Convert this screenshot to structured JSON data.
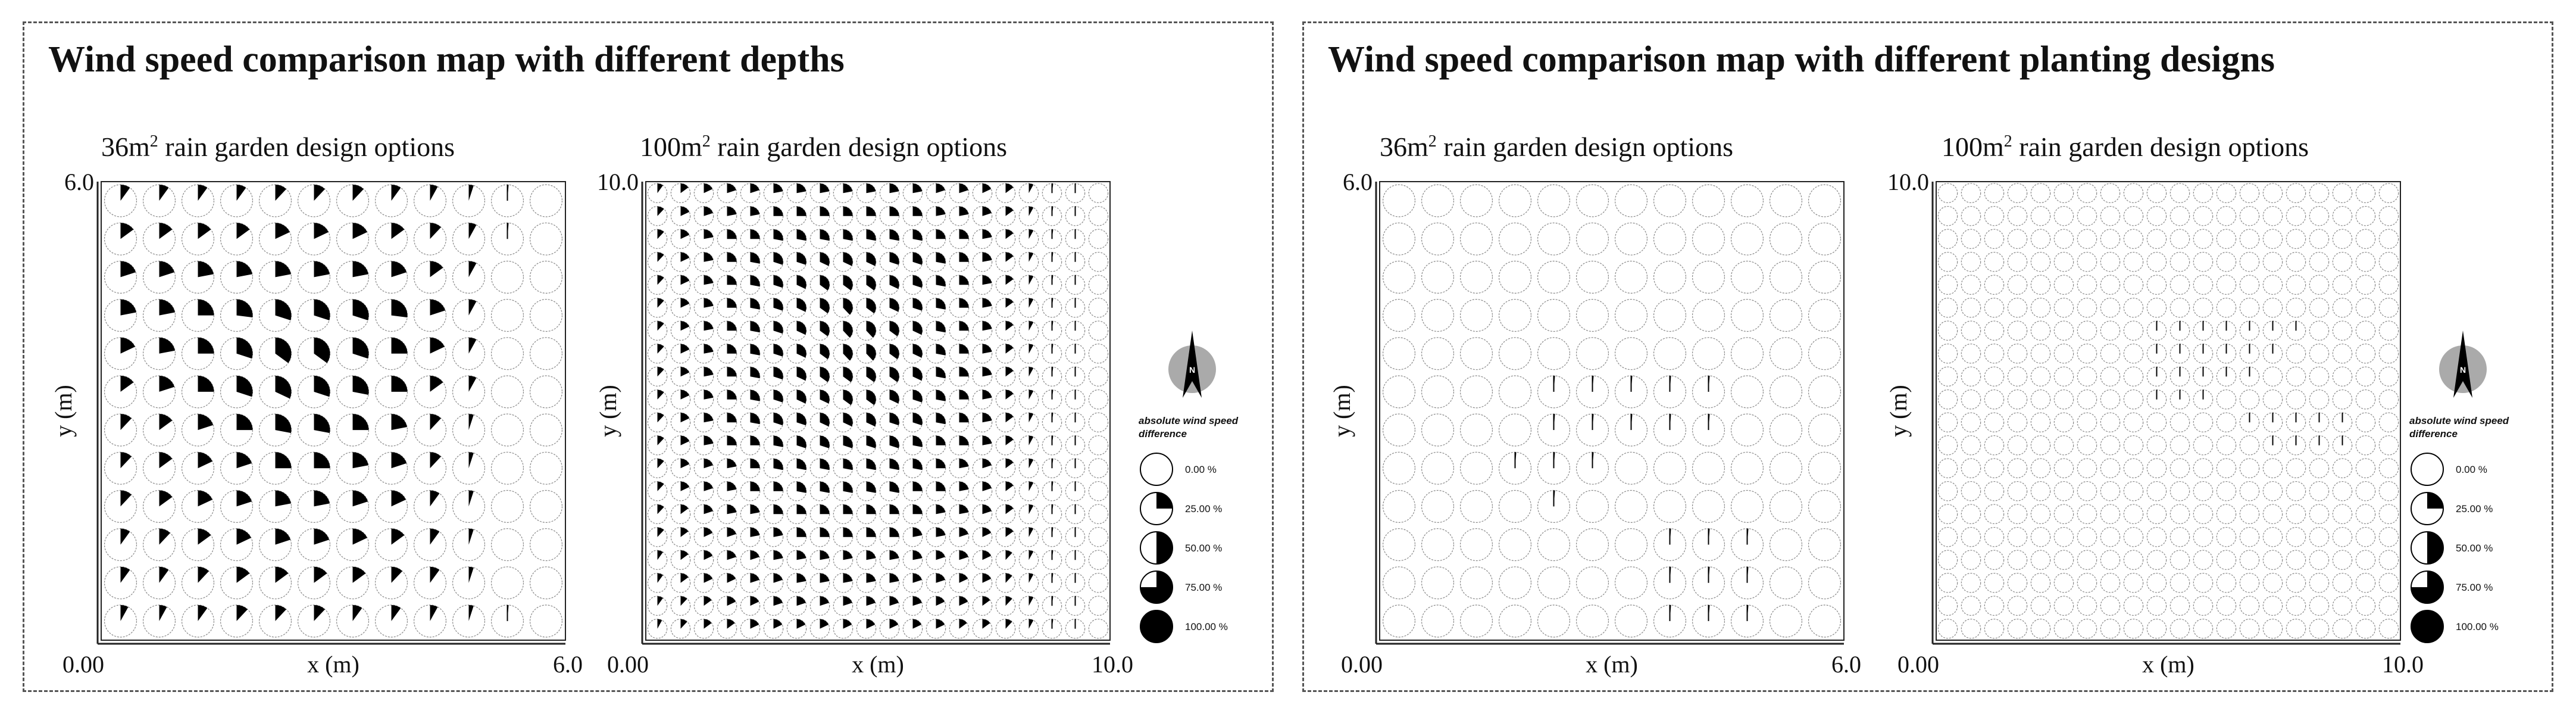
{
  "panels": [
    {
      "title": "Wind speed comparison map with different depths",
      "legend": {
        "title": "absolute wind speed difference",
        "labels": [
          "0.00 %",
          "25.00 %",
          "50.00 %",
          "75.00 %",
          "100.00 %"
        ],
        "fractions": [
          0,
          0.25,
          0.5,
          0.75,
          1.0
        ]
      },
      "north_label": "N"
    },
    {
      "title": "Wind speed comparison map with different planting designs",
      "legend": {
        "title": "absolute wind speed difference",
        "labels": [
          "0.00 %",
          "25.00 %",
          "50.00 %",
          "75.00 %",
          "100.00 %"
        ],
        "fractions": [
          0,
          0.25,
          0.5,
          0.75,
          1.0
        ]
      },
      "north_label": "N"
    }
  ],
  "chart_data": [
    {
      "type": "scatter",
      "glyph": "pie",
      "title_main": "36m",
      "title_sup": "2",
      "title_rest": " rain garden design options",
      "xlabel": "x (m)",
      "ylabel": "y (m)",
      "xlim": [
        0,
        6
      ],
      "ylim": [
        0,
        6
      ],
      "xtick_labels": [
        "0.00",
        "6.0"
      ],
      "ytick_labels": [
        "6.0"
      ],
      "grid": {
        "cols": 12,
        "rows": 12
      },
      "values_percent": [
        [
          10,
          10,
          10,
          10,
          12,
          12,
          12,
          10,
          8,
          5,
          1,
          0
        ],
        [
          15,
          15,
          15,
          15,
          18,
          18,
          18,
          15,
          12,
          8,
          1,
          0
        ],
        [
          20,
          20,
          22,
          22,
          22,
          22,
          22,
          20,
          15,
          8,
          0,
          0
        ],
        [
          22,
          22,
          25,
          27,
          30,
          30,
          30,
          27,
          20,
          8,
          0,
          0
        ],
        [
          18,
          22,
          25,
          30,
          35,
          35,
          30,
          25,
          18,
          8,
          0,
          0
        ],
        [
          15,
          20,
          25,
          30,
          32,
          30,
          28,
          25,
          15,
          8,
          0,
          0
        ],
        [
          12,
          15,
          20,
          25,
          28,
          28,
          25,
          22,
          12,
          5,
          0,
          0
        ],
        [
          12,
          15,
          18,
          20,
          25,
          25,
          22,
          20,
          12,
          5,
          0,
          0
        ],
        [
          12,
          15,
          18,
          20,
          22,
          22,
          20,
          18,
          10,
          5,
          0,
          0
        ],
        [
          10,
          12,
          15,
          18,
          20,
          20,
          18,
          15,
          10,
          5,
          0,
          0
        ],
        [
          10,
          10,
          12,
          15,
          15,
          15,
          15,
          12,
          10,
          5,
          0,
          0
        ],
        [
          8,
          8,
          10,
          12,
          12,
          12,
          10,
          10,
          8,
          5,
          1,
          0
        ]
      ]
    },
    {
      "type": "scatter",
      "glyph": "pie",
      "title_main": "100m",
      "title_sup": "2",
      "title_rest": " rain garden design options",
      "xlabel": "x (m)",
      "ylabel": "y (m)",
      "xlim": [
        0,
        10
      ],
      "ylim": [
        0,
        10
      ],
      "xtick_labels": [
        "0.00",
        "10.0"
      ],
      "ytick_labels": [
        "10.0"
      ],
      "grid": {
        "cols": 20,
        "rows": 20
      },
      "values_percent": [
        [
          10,
          15,
          18,
          20,
          20,
          22,
          22,
          22,
          22,
          22,
          22,
          22,
          20,
          20,
          18,
          15,
          8,
          2,
          1,
          0
        ],
        [
          12,
          18,
          20,
          22,
          22,
          25,
          25,
          25,
          25,
          25,
          25,
          25,
          22,
          22,
          20,
          15,
          8,
          2,
          1,
          0
        ],
        [
          12,
          18,
          22,
          25,
          25,
          28,
          28,
          28,
          28,
          28,
          28,
          28,
          25,
          25,
          22,
          15,
          8,
          2,
          1,
          0
        ],
        [
          12,
          18,
          22,
          25,
          28,
          30,
          30,
          32,
          32,
          32,
          30,
          30,
          28,
          25,
          22,
          15,
          8,
          2,
          1,
          0
        ],
        [
          12,
          18,
          22,
          25,
          28,
          30,
          32,
          35,
          35,
          35,
          32,
          30,
          28,
          25,
          22,
          15,
          8,
          2,
          1,
          0
        ],
        [
          12,
          18,
          22,
          25,
          28,
          30,
          32,
          35,
          38,
          35,
          32,
          30,
          28,
          25,
          22,
          15,
          8,
          2,
          1,
          0
        ],
        [
          12,
          18,
          22,
          25,
          28,
          30,
          32,
          35,
          38,
          38,
          35,
          32,
          28,
          25,
          22,
          15,
          8,
          2,
          1,
          0
        ],
        [
          12,
          18,
          22,
          25,
          28,
          30,
          32,
          35,
          38,
          38,
          35,
          32,
          28,
          25,
          22,
          15,
          8,
          2,
          1,
          0
        ],
        [
          12,
          18,
          22,
          25,
          28,
          30,
          32,
          35,
          35,
          35,
          35,
          32,
          28,
          25,
          22,
          15,
          8,
          2,
          1,
          0
        ],
        [
          12,
          18,
          22,
          25,
          28,
          30,
          32,
          32,
          35,
          35,
          32,
          30,
          28,
          25,
          22,
          15,
          8,
          2,
          1,
          0
        ],
        [
          12,
          18,
          22,
          25,
          28,
          30,
          30,
          32,
          32,
          32,
          30,
          30,
          28,
          25,
          22,
          15,
          8,
          2,
          1,
          0
        ],
        [
          12,
          18,
          22,
          25,
          25,
          28,
          30,
          30,
          30,
          30,
          30,
          28,
          25,
          25,
          22,
          15,
          8,
          2,
          1,
          0
        ],
        [
          12,
          18,
          20,
          22,
          25,
          28,
          28,
          28,
          28,
          28,
          28,
          28,
          25,
          22,
          20,
          15,
          8,
          2,
          1,
          0
        ],
        [
          12,
          18,
          20,
          22,
          25,
          25,
          28,
          28,
          28,
          28,
          28,
          25,
          25,
          22,
          20,
          15,
          8,
          2,
          1,
          0
        ],
        [
          12,
          15,
          20,
          22,
          22,
          25,
          25,
          25,
          25,
          25,
          25,
          25,
          22,
          22,
          20,
          15,
          8,
          2,
          1,
          0
        ],
        [
          12,
          15,
          18,
          20,
          22,
          22,
          25,
          25,
          25,
          25,
          25,
          22,
          22,
          20,
          18,
          15,
          8,
          2,
          1,
          0
        ],
        [
          10,
          15,
          18,
          20,
          20,
          22,
          22,
          22,
          22,
          22,
          22,
          22,
          20,
          20,
          18,
          12,
          8,
          2,
          1,
          0
        ],
        [
          10,
          15,
          18,
          18,
          20,
          20,
          22,
          22,
          22,
          22,
          22,
          20,
          20,
          18,
          18,
          12,
          8,
          2,
          1,
          0
        ],
        [
          10,
          12,
          15,
          18,
          18,
          20,
          20,
          20,
          20,
          20,
          20,
          20,
          18,
          18,
          15,
          12,
          8,
          2,
          1,
          0
        ],
        [
          8,
          12,
          15,
          15,
          18,
          18,
          18,
          18,
          18,
          18,
          18,
          18,
          18,
          15,
          15,
          12,
          8,
          2,
          1,
          0
        ]
      ]
    },
    {
      "type": "scatter",
      "glyph": "pie",
      "title_main": "36m",
      "title_sup": "2",
      "title_rest": " rain garden design options",
      "xlabel": "x (m)",
      "ylabel": "y (m)",
      "xlim": [
        0,
        6
      ],
      "ylim": [
        0,
        6
      ],
      "xtick_labels": [
        "0.00",
        "6.0"
      ],
      "ytick_labels": [
        "6.0"
      ],
      "grid": {
        "cols": 12,
        "rows": 12
      },
      "values_percent": [
        [
          0,
          0,
          0,
          0,
          0,
          0,
          0,
          0,
          0,
          0,
          0,
          0
        ],
        [
          0,
          0,
          0,
          0,
          0,
          0,
          0,
          0,
          0,
          0,
          0,
          0
        ],
        [
          0,
          0,
          0,
          0,
          0,
          0,
          0,
          0,
          0,
          0,
          0,
          0
        ],
        [
          0,
          0,
          0,
          0,
          0,
          0,
          0,
          0,
          0,
          0,
          0,
          0
        ],
        [
          0,
          0,
          0,
          0,
          0,
          0,
          0,
          0,
          0,
          0,
          0,
          0
        ],
        [
          0,
          0,
          0,
          0,
          1,
          1,
          1,
          1,
          1,
          0,
          0,
          0
        ],
        [
          0,
          0,
          0,
          0,
          1,
          1,
          1,
          1,
          1,
          0,
          0,
          0
        ],
        [
          0,
          0,
          0,
          1,
          1,
          1,
          0,
          0,
          0,
          0,
          0,
          0
        ],
        [
          0,
          0,
          0,
          0,
          1,
          0,
          0,
          0,
          0,
          0,
          0,
          0
        ],
        [
          0,
          0,
          0,
          0,
          0,
          0,
          0,
          1,
          1,
          1,
          0,
          0
        ],
        [
          0,
          0,
          0,
          0,
          0,
          0,
          0,
          1,
          1,
          1,
          0,
          0
        ],
        [
          0,
          0,
          0,
          0,
          0,
          0,
          0,
          1,
          1,
          1,
          0,
          0
        ]
      ]
    },
    {
      "type": "scatter",
      "glyph": "pie",
      "title_main": "100m",
      "title_sup": "2",
      "title_rest": " rain garden design options",
      "xlabel": "x (m)",
      "ylabel": "y (m)",
      "xlim": [
        0,
        10
      ],
      "ylim": [
        0,
        10
      ],
      "xtick_labels": [
        "0.00",
        "10.0"
      ],
      "ytick_labels": [
        "10.0"
      ],
      "grid": {
        "cols": 20,
        "rows": 20
      },
      "values_percent": [
        [
          0,
          0,
          0,
          0,
          0,
          0,
          0,
          0,
          0,
          0,
          0,
          0,
          0,
          0,
          0,
          0,
          0,
          0,
          0,
          0
        ],
        [
          0,
          0,
          0,
          0,
          0,
          0,
          0,
          0,
          0,
          0,
          0,
          0,
          0,
          0,
          0,
          0,
          0,
          0,
          0,
          0
        ],
        [
          0,
          0,
          0,
          0,
          0,
          0,
          0,
          0,
          0,
          0,
          0,
          0,
          0,
          0,
          0,
          0,
          0,
          0,
          0,
          0
        ],
        [
          0,
          0,
          0,
          0,
          0,
          0,
          0,
          0,
          0,
          0,
          0,
          0,
          0,
          0,
          0,
          0,
          0,
          0,
          0,
          0
        ],
        [
          0,
          0,
          0,
          0,
          0,
          0,
          0,
          0,
          0,
          0,
          0,
          0,
          0,
          0,
          0,
          0,
          0,
          0,
          0,
          0
        ],
        [
          0,
          0,
          0,
          0,
          0,
          0,
          0,
          0,
          0,
          0,
          0,
          0,
          0,
          0,
          0,
          0,
          0,
          0,
          0,
          0
        ],
        [
          0,
          0,
          0,
          0,
          0,
          0,
          0,
          0,
          0,
          1,
          1,
          1,
          1,
          1,
          1,
          1,
          0,
          0,
          0,
          0
        ],
        [
          0,
          0,
          0,
          0,
          0,
          0,
          0,
          0,
          0,
          1,
          1,
          1,
          1,
          1,
          1,
          0,
          0,
          0,
          0,
          0
        ],
        [
          0,
          0,
          0,
          0,
          0,
          0,
          0,
          0,
          0,
          1,
          1,
          1,
          1,
          1,
          0,
          0,
          0,
          0,
          0,
          0
        ],
        [
          0,
          0,
          0,
          0,
          0,
          0,
          0,
          0,
          0,
          1,
          1,
          1,
          0,
          0,
          0,
          0,
          0,
          0,
          0,
          0
        ],
        [
          0,
          0,
          0,
          0,
          0,
          0,
          0,
          0,
          0,
          0,
          0,
          0,
          0,
          1,
          1,
          1,
          1,
          1,
          0,
          0
        ],
        [
          0,
          0,
          0,
          0,
          0,
          0,
          0,
          0,
          0,
          0,
          0,
          0,
          0,
          0,
          1,
          1,
          1,
          1,
          0,
          0
        ],
        [
          0,
          0,
          0,
          0,
          0,
          0,
          0,
          0,
          0,
          0,
          0,
          0,
          0,
          0,
          0,
          0,
          0,
          0,
          0,
          0
        ],
        [
          0,
          0,
          0,
          0,
          0,
          0,
          0,
          0,
          0,
          0,
          0,
          0,
          0,
          0,
          0,
          0,
          0,
          0,
          0,
          0
        ],
        [
          0,
          0,
          0,
          0,
          0,
          0,
          0,
          0,
          0,
          0,
          0,
          0,
          0,
          0,
          0,
          0,
          0,
          0,
          0,
          0
        ],
        [
          0,
          0,
          0,
          0,
          0,
          0,
          0,
          0,
          0,
          0,
          0,
          0,
          0,
          0,
          0,
          0,
          0,
          0,
          0,
          0
        ],
        [
          0,
          0,
          0,
          0,
          0,
          0,
          0,
          0,
          0,
          0,
          0,
          0,
          0,
          0,
          0,
          0,
          0,
          0,
          0,
          0
        ],
        [
          0,
          0,
          0,
          0,
          0,
          0,
          0,
          0,
          0,
          0,
          0,
          0,
          0,
          0,
          0,
          0,
          0,
          0,
          0,
          0
        ],
        [
          0,
          0,
          0,
          0,
          0,
          0,
          0,
          0,
          0,
          0,
          0,
          0,
          0,
          0,
          0,
          0,
          0,
          0,
          0,
          0
        ],
        [
          0,
          0,
          0,
          0,
          0,
          0,
          0,
          0,
          0,
          0,
          0,
          0,
          0,
          0,
          0,
          0,
          0,
          0,
          0,
          0
        ]
      ]
    }
  ]
}
